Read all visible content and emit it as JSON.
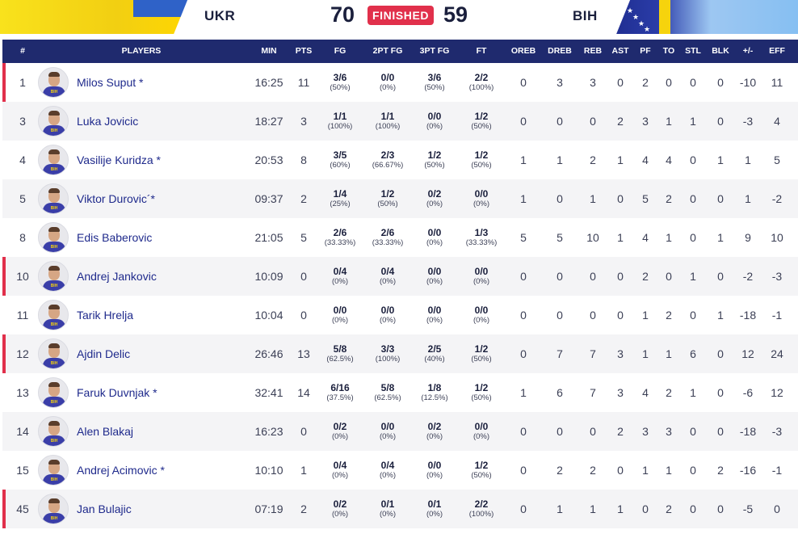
{
  "scoreboard": {
    "home_team": "UKR",
    "away_team": "BIH",
    "home_score": "70",
    "away_score": "59",
    "status": "FINISHED",
    "status_color": "#e1304b"
  },
  "table": {
    "headers": [
      "#",
      "PLAYERS",
      "MIN",
      "PTS",
      "FG",
      "2PT FG",
      "3PT FG",
      "FT",
      "OREB",
      "DREB",
      "REB",
      "AST",
      "PF",
      "TO",
      "STL",
      "BLK",
      "+/-",
      "EFF"
    ],
    "jersey_text": "BIH",
    "rows": [
      {
        "num": "1",
        "name": "Milos Suput",
        "star": " *",
        "marked": true,
        "min": "16:25",
        "pts": "11",
        "fg": "3/6",
        "fg_pct": "(50%)",
        "pt2": "0/0",
        "pt2_pct": "(0%)",
        "pt3": "3/6",
        "pt3_pct": "(50%)",
        "ft": "2/2",
        "ft_pct": "(100%)",
        "oreb": "0",
        "dreb": "3",
        "reb": "3",
        "ast": "0",
        "pf": "2",
        "to": "0",
        "stl": "0",
        "blk": "0",
        "pm": "-10",
        "eff": "11"
      },
      {
        "num": "3",
        "name": "Luka Jovicic",
        "star": "",
        "marked": false,
        "min": "18:27",
        "pts": "3",
        "fg": "1/1",
        "fg_pct": "(100%)",
        "pt2": "1/1",
        "pt2_pct": "(100%)",
        "pt3": "0/0",
        "pt3_pct": "(0%)",
        "ft": "1/2",
        "ft_pct": "(50%)",
        "oreb": "0",
        "dreb": "0",
        "reb": "0",
        "ast": "2",
        "pf": "3",
        "to": "1",
        "stl": "1",
        "blk": "0",
        "pm": "-3",
        "eff": "4"
      },
      {
        "num": "4",
        "name": "Vasilije Kuridza",
        "star": " *",
        "marked": false,
        "min": "20:53",
        "pts": "8",
        "fg": "3/5",
        "fg_pct": "(60%)",
        "pt2": "2/3",
        "pt2_pct": "(66.67%)",
        "pt3": "1/2",
        "pt3_pct": "(50%)",
        "ft": "1/2",
        "ft_pct": "(50%)",
        "oreb": "1",
        "dreb": "1",
        "reb": "2",
        "ast": "1",
        "pf": "4",
        "to": "4",
        "stl": "0",
        "blk": "1",
        "pm": "1",
        "eff": "5"
      },
      {
        "num": "5",
        "name": "Viktor Durovic",
        "star": "´*",
        "marked": false,
        "min": "09:37",
        "pts": "2",
        "fg": "1/4",
        "fg_pct": "(25%)",
        "pt2": "1/2",
        "pt2_pct": "(50%)",
        "pt3": "0/2",
        "pt3_pct": "(0%)",
        "ft": "0/0",
        "ft_pct": "(0%)",
        "oreb": "1",
        "dreb": "0",
        "reb": "1",
        "ast": "0",
        "pf": "5",
        "to": "2",
        "stl": "0",
        "blk": "0",
        "pm": "1",
        "eff": "-2"
      },
      {
        "num": "8",
        "name": "Edis Baberovic",
        "star": "",
        "marked": false,
        "min": "21:05",
        "pts": "5",
        "fg": "2/6",
        "fg_pct": "(33.33%)",
        "pt2": "2/6",
        "pt2_pct": "(33.33%)",
        "pt3": "0/0",
        "pt3_pct": "(0%)",
        "ft": "1/3",
        "ft_pct": "(33.33%)",
        "oreb": "5",
        "dreb": "5",
        "reb": "10",
        "ast": "1",
        "pf": "4",
        "to": "1",
        "stl": "0",
        "blk": "1",
        "pm": "9",
        "eff": "10"
      },
      {
        "num": "10",
        "name": "Andrej Jankovic",
        "star": "",
        "marked": true,
        "min": "10:09",
        "pts": "0",
        "fg": "0/4",
        "fg_pct": "(0%)",
        "pt2": "0/4",
        "pt2_pct": "(0%)",
        "pt3": "0/0",
        "pt3_pct": "(0%)",
        "ft": "0/0",
        "ft_pct": "(0%)",
        "oreb": "0",
        "dreb": "0",
        "reb": "0",
        "ast": "0",
        "pf": "2",
        "to": "0",
        "stl": "1",
        "blk": "0",
        "pm": "-2",
        "eff": "-3"
      },
      {
        "num": "11",
        "name": "Tarik Hrelja",
        "star": "",
        "marked": false,
        "min": "10:04",
        "pts": "0",
        "fg": "0/0",
        "fg_pct": "(0%)",
        "pt2": "0/0",
        "pt2_pct": "(0%)",
        "pt3": "0/0",
        "pt3_pct": "(0%)",
        "ft": "0/0",
        "ft_pct": "(0%)",
        "oreb": "0",
        "dreb": "0",
        "reb": "0",
        "ast": "0",
        "pf": "1",
        "to": "2",
        "stl": "0",
        "blk": "1",
        "pm": "-18",
        "eff": "-1"
      },
      {
        "num": "12",
        "name": "Ajdin Delic",
        "star": "",
        "marked": true,
        "min": "26:46",
        "pts": "13",
        "fg": "5/8",
        "fg_pct": "(62.5%)",
        "pt2": "3/3",
        "pt2_pct": "(100%)",
        "pt3": "2/5",
        "pt3_pct": "(40%)",
        "ft": "1/2",
        "ft_pct": "(50%)",
        "oreb": "0",
        "dreb": "7",
        "reb": "7",
        "ast": "3",
        "pf": "1",
        "to": "1",
        "stl": "6",
        "blk": "0",
        "pm": "12",
        "eff": "24"
      },
      {
        "num": "13",
        "name": "Faruk Duvnjak",
        "star": " *",
        "marked": false,
        "min": "32:41",
        "pts": "14",
        "fg": "6/16",
        "fg_pct": "(37.5%)",
        "pt2": "5/8",
        "pt2_pct": "(62.5%)",
        "pt3": "1/8",
        "pt3_pct": "(12.5%)",
        "ft": "1/2",
        "ft_pct": "(50%)",
        "oreb": "1",
        "dreb": "6",
        "reb": "7",
        "ast": "3",
        "pf": "4",
        "to": "2",
        "stl": "1",
        "blk": "0",
        "pm": "-6",
        "eff": "12"
      },
      {
        "num": "14",
        "name": "Alen Blakaj",
        "star": "",
        "marked": false,
        "min": "16:23",
        "pts": "0",
        "fg": "0/2",
        "fg_pct": "(0%)",
        "pt2": "0/0",
        "pt2_pct": "(0%)",
        "pt3": "0/2",
        "pt3_pct": "(0%)",
        "ft": "0/0",
        "ft_pct": "(0%)",
        "oreb": "0",
        "dreb": "0",
        "reb": "0",
        "ast": "2",
        "pf": "3",
        "to": "3",
        "stl": "0",
        "blk": "0",
        "pm": "-18",
        "eff": "-3"
      },
      {
        "num": "15",
        "name": "Andrej Acimovic",
        "star": " *",
        "marked": false,
        "min": "10:10",
        "pts": "1",
        "fg": "0/4",
        "fg_pct": "(0%)",
        "pt2": "0/4",
        "pt2_pct": "(0%)",
        "pt3": "0/0",
        "pt3_pct": "(0%)",
        "ft": "1/2",
        "ft_pct": "(50%)",
        "oreb": "0",
        "dreb": "2",
        "reb": "2",
        "ast": "0",
        "pf": "1",
        "to": "1",
        "stl": "0",
        "blk": "2",
        "pm": "-16",
        "eff": "-1"
      },
      {
        "num": "45",
        "name": "Jan Bulajic",
        "star": "",
        "marked": true,
        "min": "07:19",
        "pts": "2",
        "fg": "0/2",
        "fg_pct": "(0%)",
        "pt2": "0/1",
        "pt2_pct": "(0%)",
        "pt3": "0/1",
        "pt3_pct": "(0%)",
        "ft": "2/2",
        "ft_pct": "(100%)",
        "oreb": "0",
        "dreb": "1",
        "reb": "1",
        "ast": "1",
        "pf": "0",
        "to": "2",
        "stl": "0",
        "blk": "0",
        "pm": "-5",
        "eff": "0"
      }
    ]
  }
}
